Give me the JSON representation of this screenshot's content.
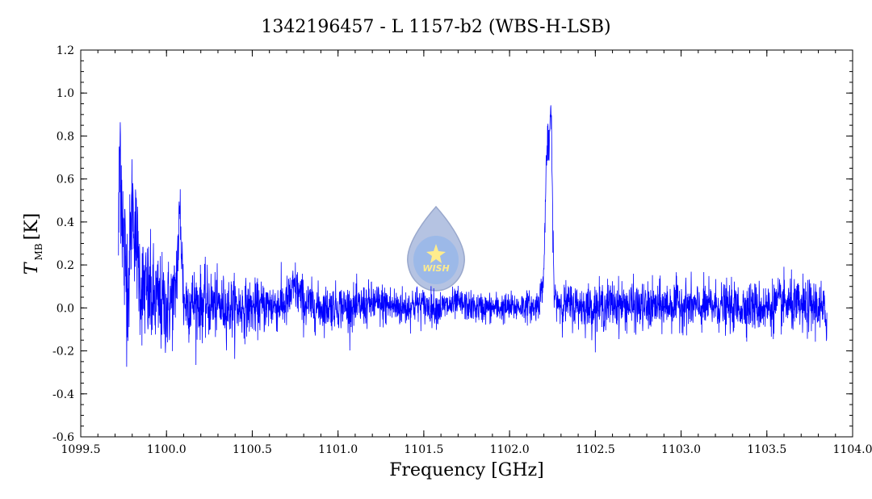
{
  "chart_data": {
    "type": "line",
    "title": "1342196457 - L 1157-b2 (WBS-H-LSB)",
    "xlabel": "Frequency [GHz]",
    "ylabel_main": "T",
    "ylabel_sub": "MB",
    "ylabel_unit": "[K]",
    "xlim": [
      1099.5,
      1104.0
    ],
    "ylim": [
      -0.6,
      1.2
    ],
    "x_ticks": [
      1099.5,
      1100.0,
      1100.5,
      1101.0,
      1101.5,
      1102.0,
      1102.5,
      1103.0,
      1103.5,
      1104.0
    ],
    "x_tick_labels": [
      "1099.5",
      "1100.0",
      "1100.5",
      "1101.0",
      "1101.5",
      "1102.0",
      "1102.5",
      "1103.0",
      "1103.5",
      "1104.0"
    ],
    "y_ticks": [
      -0.6,
      -0.4,
      -0.2,
      0.0,
      0.2,
      0.4,
      0.6,
      0.8,
      1.0,
      1.2
    ],
    "y_tick_labels": [
      "-0.6",
      "-0.4",
      "-0.2",
      "0.0",
      "0.2",
      "0.4",
      "0.6",
      "0.8",
      "1.0",
      "1.2"
    ],
    "grid": false,
    "series_color": "#0000ff",
    "series": [
      {
        "x": [
          1099.72,
          1099.73,
          1099.75,
          1099.78,
          1099.8,
          1099.85,
          1099.9,
          1099.95,
          1100.0,
          1100.05,
          1100.08,
          1100.1,
          1100.2,
          1100.25,
          1100.3,
          1100.4,
          1100.5,
          1100.6,
          1100.7,
          1100.75,
          1100.8,
          1100.9,
          1101.0,
          1101.1,
          1101.2,
          1101.3,
          1101.4,
          1101.45,
          1101.5,
          1101.6,
          1101.7,
          1101.8,
          1101.9,
          1102.0,
          1102.1,
          1102.15,
          1102.18,
          1102.2,
          1102.21,
          1102.22,
          1102.23,
          1102.24,
          1102.25,
          1102.26,
          1102.3,
          1102.4,
          1102.5,
          1102.6,
          1102.7,
          1102.8,
          1102.9,
          1103.0,
          1103.1,
          1103.2,
          1103.3,
          1103.4,
          1103.5,
          1103.6,
          1103.7,
          1103.8,
          1103.85
        ],
        "y": [
          0.3,
          0.79,
          0.25,
          0.12,
          0.5,
          0.1,
          0.05,
          0.02,
          0.0,
          0.05,
          0.45,
          0.03,
          0.02,
          0.02,
          0.01,
          0.0,
          0.0,
          0.01,
          0.02,
          0.1,
          0.02,
          0.0,
          0.01,
          0.0,
          0.02,
          0.01,
          0.0,
          0.02,
          0.01,
          0.0,
          0.02,
          0.0,
          0.0,
          0.0,
          0.01,
          0.0,
          0.05,
          0.15,
          0.55,
          0.78,
          0.7,
          0.98,
          0.5,
          0.05,
          0.02,
          0.01,
          0.0,
          0.02,
          0.01,
          0.0,
          0.01,
          0.02,
          0.0,
          0.01,
          0.0,
          0.01,
          0.0,
          0.02,
          0.0,
          0.01,
          -0.05
        ],
        "noise_sigma": [
          0.18,
          0.2,
          0.2,
          0.15,
          0.14,
          0.13,
          0.13,
          0.12,
          0.11,
          0.1,
          0.1,
          0.09,
          0.08,
          0.08,
          0.07,
          0.07,
          0.06,
          0.06,
          0.06,
          0.06,
          0.06,
          0.05,
          0.05,
          0.05,
          0.05,
          0.05,
          0.045,
          0.045,
          0.04,
          0.04,
          0.035,
          0.035,
          0.035,
          0.035,
          0.035,
          0.035,
          0.04,
          0.04,
          0.05,
          0.05,
          0.05,
          0.05,
          0.05,
          0.04,
          0.05,
          0.05,
          0.055,
          0.055,
          0.055,
          0.055,
          0.055,
          0.055,
          0.055,
          0.055,
          0.055,
          0.055,
          0.06,
          0.06,
          0.06,
          0.065,
          0.065
        ]
      }
    ]
  },
  "logo": {
    "text": "WISH"
  }
}
